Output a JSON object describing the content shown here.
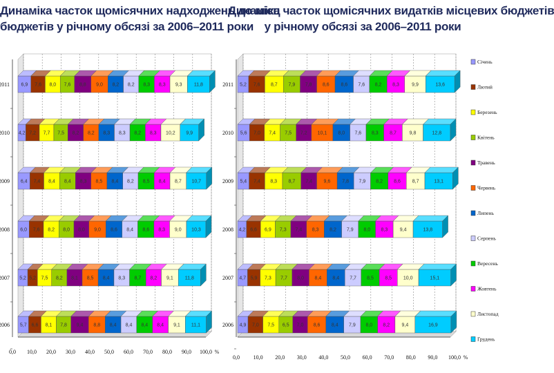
{
  "titles": {
    "left": [
      "Динаміка часток щомісячних надходжень до місц",
      "бюджетів у річному обсязі за 2006–2011 роки"
    ],
    "right": [
      "Динаміка часток щомісячних видатків місцевих бюджетів",
      "у річному обсязі за 2006–2011 роки"
    ]
  },
  "legend": {
    "items": [
      "Січень",
      "Лютий",
      "Березень",
      "Квітень",
      "Травень",
      "Червень",
      "Липень",
      "Серпень",
      "Вересень",
      "Жовтень",
      "Листопад",
      "Грудень"
    ],
    "colors": [
      "#9999ff",
      "#993300",
      "#ffff00",
      "#99cc00",
      "#800080",
      "#ff6600",
      "#0066cc",
      "#ccccff",
      "#00cc00",
      "#ff00ff",
      "#ffffcc",
      "#00ccff"
    ]
  },
  "chart_data": [
    {
      "type": "bar",
      "orientation": "horizontal",
      "stacked": "percent",
      "title": "Динаміка часток щомісячних надходжень до місцевих бюджетів у річному обсязі за 2006–2011 роки",
      "categories": [
        "2011",
        "2010",
        "2009",
        "2008",
        "2007",
        "2006"
      ],
      "xlim": [
        0,
        100
      ],
      "x_ticks": [
        "0,0",
        "10,0",
        "20,0",
        "30,0",
        "40,0",
        "50,0",
        "60,0",
        "70,0",
        "80,0",
        "90,0",
        "100,0"
      ],
      "x_unit": "%",
      "series": [
        {
          "name": "Січень",
          "values": [
            6.9,
            4.2,
            6.4,
            6.0,
            5.2,
            5.7
          ]
        },
        {
          "name": "Лютий",
          "values": [
            7.6,
            7.2,
            7.4,
            7.6,
            5.2,
            6.6
          ]
        },
        {
          "name": "Березень",
          "values": [
            8.0,
            7.7,
            8.4,
            8.2,
            7.5,
            8.1
          ]
        },
        {
          "name": "Квітень",
          "values": [
            7.6,
            7.5,
            8.4,
            8.0,
            8.2,
            7.8
          ]
        },
        {
          "name": "Травень",
          "values": [
            8.8,
            8.2,
            8.3,
            8.0,
            8.1,
            9.4
          ]
        },
        {
          "name": "Червень",
          "values": [
            9.0,
            8.2,
            8.5,
            9.0,
            8.5,
            8.8
          ]
        },
        {
          "name": "Липень",
          "values": [
            8.2,
            8.3,
            8.4,
            8.6,
            8.4,
            8.4
          ]
        },
        {
          "name": "Серпень",
          "values": [
            8.2,
            8.3,
            8.2,
            8.4,
            8.3,
            8.4
          ]
        },
        {
          "name": "Вересень",
          "values": [
            8.3,
            8.2,
            8.5,
            8.6,
            8.7,
            8.4
          ]
        },
        {
          "name": "Жовтень",
          "values": [
            8.3,
            8.3,
            8.4,
            8.3,
            8.2,
            8.4
          ]
        },
        {
          "name": "Листопад",
          "values": [
            9.3,
            10.2,
            8.7,
            9.0,
            9.1,
            9.1
          ]
        },
        {
          "name": "Грудень",
          "values": [
            11.8,
            9.9,
            10.7,
            10.3,
            11.8,
            11.1
          ]
        }
      ],
      "segment_labels": [
        [
          "6,9",
          "7,6",
          "8,0",
          "7,6",
          "8,8",
          "9,0",
          "8,2",
          "8,2",
          "8,3",
          "8,3",
          "9,3",
          "11,8"
        ],
        [
          "4,2",
          "7,2",
          "7,7",
          "7,5",
          "8,2",
          "8,2",
          "8,3",
          "8,3",
          "8,2",
          "8,3",
          "10,2",
          "9,9"
        ],
        [
          "6,4",
          "7,4",
          "8,4",
          "8,4",
          "8,3",
          "8,5",
          "8,4",
          "8,2",
          "8,5",
          "8,4",
          "8,7",
          "10,7"
        ],
        [
          "6,0",
          "7,6",
          "8,2",
          "8,0",
          "8,0",
          "9,0",
          "8,6",
          "8,4",
          "8,6",
          "8,3",
          "9,0",
          "10,3"
        ],
        [
          "5,2",
          "5,2",
          "7,5",
          "8,2",
          "8,1",
          "8,5",
          "8,4",
          "8,3",
          "8,7",
          "8,2",
          "9,1",
          "11,8"
        ],
        [
          "5,7",
          "6,6",
          "8,1",
          "7,8",
          "9,4",
          "8,8",
          "8,4",
          "8,4",
          "8,4",
          "8,4",
          "9,1",
          "11,1"
        ]
      ]
    },
    {
      "type": "bar",
      "orientation": "horizontal",
      "stacked": "percent",
      "title": "Динаміка часток щомісячних видатків місцевих бюджетів у річному обсязі за 2006–2011 роки",
      "categories": [
        "2011",
        "2010",
        "2009",
        "2008",
        "2007",
        "2006"
      ],
      "xlim": [
        0,
        100
      ],
      "x_ticks": [
        "0,0",
        "10,0",
        "20,0",
        "30,0",
        "40,0",
        "50,0",
        "60,0",
        "70,0",
        "80,0",
        "90,0",
        "100,0"
      ],
      "x_unit": "%",
      "series": [
        {
          "name": "Січень",
          "values": [
            5.2,
            5.6,
            5.4,
            4.2,
            4.7,
            4.9
          ]
        },
        {
          "name": "Лютий",
          "values": [
            7.6,
            7.0,
            7.4,
            6.6,
            5.9,
            7.0
          ]
        },
        {
          "name": "Березень",
          "values": [
            8.7,
            7.4,
            8.3,
            6.9,
            7.3,
            7.5
          ]
        },
        {
          "name": "Квітень",
          "values": [
            7.9,
            7.5,
            8.7,
            7.3,
            7.7,
            6.5
          ]
        },
        {
          "name": "Травень",
          "values": [
            7.8,
            7.2,
            7.4,
            7.4,
            8.0,
            7.0
          ]
        },
        {
          "name": "Червень",
          "values": [
            8.6,
            10.1,
            9.6,
            8.3,
            8.4,
            8.6
          ]
        },
        {
          "name": "Липень",
          "values": [
            8.6,
            8.0,
            7.8,
            8.2,
            8.4,
            8.4
          ]
        },
        {
          "name": "Серпень",
          "values": [
            7.6,
            7.6,
            7.9,
            7.9,
            7.7,
            7.9
          ]
        },
        {
          "name": "Вересень",
          "values": [
            8.2,
            8.3,
            8.2,
            8.0,
            8.5,
            8.0
          ]
        },
        {
          "name": "Жовтень",
          "values": [
            8.3,
            8.7,
            8.6,
            8.3,
            8.5,
            8.2
          ]
        },
        {
          "name": "Листопад",
          "values": [
            9.9,
            9.8,
            8.7,
            9.4,
            10.0,
            9.4
          ]
        },
        {
          "name": "Грудень",
          "values": [
            13.6,
            12.8,
            13.1,
            13.8,
            15.1,
            16.9
          ]
        }
      ],
      "segment_labels": [
        [
          "5,2",
          "7,6",
          "8,7",
          "7,9",
          "7,8",
          "8,6",
          "8,6",
          "7,6",
          "8,2",
          "8,3",
          "9,9",
          "13,6"
        ],
        [
          "5,6",
          "7,0",
          "7,4",
          "7,5",
          "7,2",
          "10,1",
          "8,0",
          "7,6",
          "8,3",
          "8,7",
          "9,8",
          "12,8"
        ],
        [
          "5,4",
          "7,4",
          "8,3",
          "8,7",
          "7,4",
          "9,6",
          "7,8",
          "7,9",
          "8,2",
          "8,6",
          "8,7",
          "13,1"
        ],
        [
          "4,2",
          "6,6",
          "6,9",
          "7,3",
          "7,4",
          "8,3",
          "8,2",
          "7,9",
          "8,0",
          "8,3",
          "9,4",
          "13,8"
        ],
        [
          "4,7",
          "5,9",
          "7,3",
          "7,7",
          "8,0",
          "8,4",
          "8,4",
          "7,7",
          "8,5",
          "8,5",
          "10,0",
          "15,1"
        ],
        [
          "4,9",
          "7,0",
          "7,5",
          "6,5",
          "7,0",
          "8,6",
          "8,4",
          "7,9",
          "8,0",
          "8,2",
          "9,4",
          "16,9"
        ]
      ]
    }
  ]
}
